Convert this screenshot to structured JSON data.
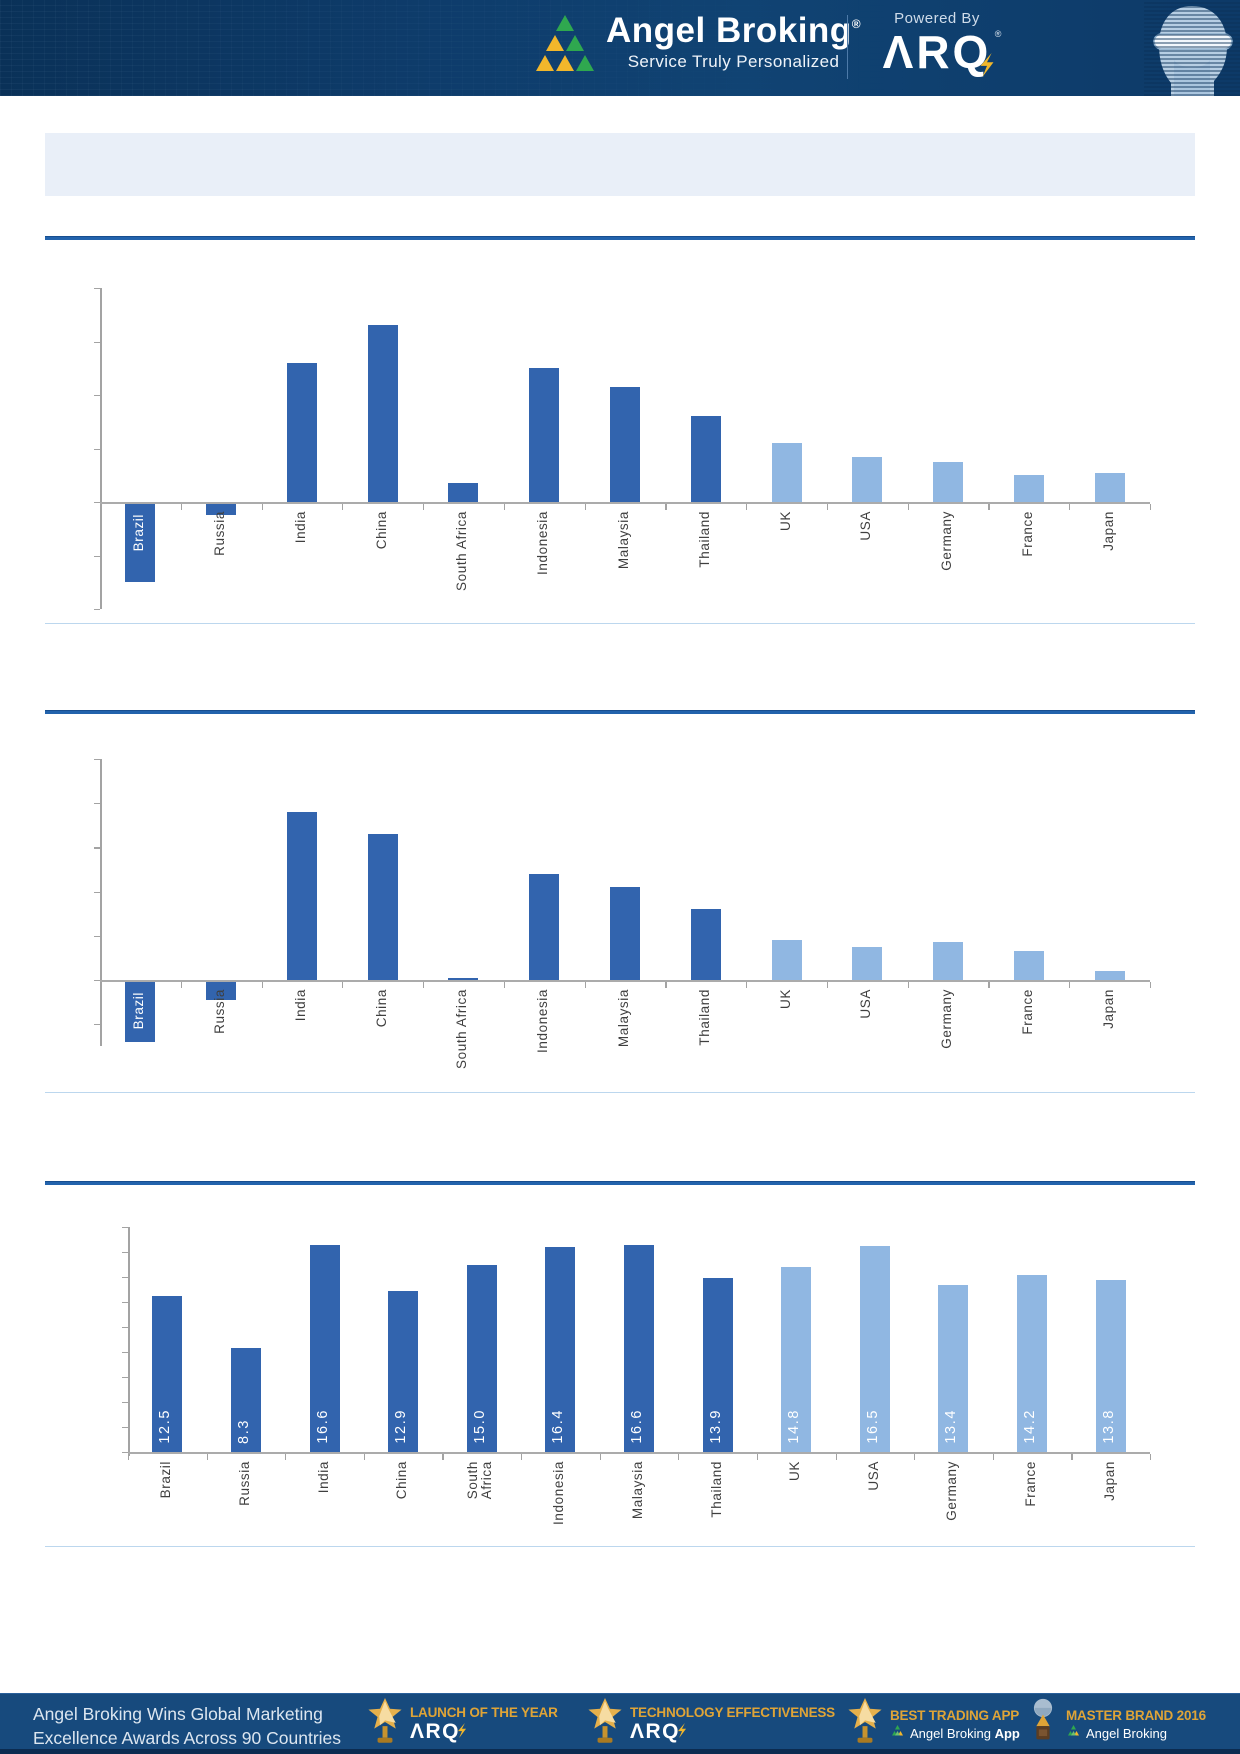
{
  "header": {
    "brand_name": "Angel Broking",
    "brand_reg": "®",
    "tagline": "Service Truly Personalized",
    "powered_by_label": "Powered By",
    "arq_brand": "ARQ",
    "arq_reg": "®"
  },
  "title_bar": {
    "text": ""
  },
  "colors": {
    "bar_dark": "#3264AE",
    "bar_light": "#90B7E2",
    "divider_blue": "#2263AC",
    "separator_light": "#BCD7EE",
    "axis_gray": "#A3A3A3",
    "header_bg": "#0E3C6B",
    "footer_bg": "#174A7D",
    "award_gold": "#DFA437",
    "logo_green": "#2FA84F",
    "logo_yellow": "#F2B72B",
    "title_bar_bg": "#E9EFF8"
  },
  "chart_data": [
    {
      "type": "bar",
      "title": "",
      "xlabel": "",
      "ylabel": "",
      "categories": [
        "Brazil",
        "Russia",
        "India",
        "China",
        "South Africa",
        "Indonesia",
        "Malaysia",
        "Thailand",
        "UK",
        "USA",
        "Germany",
        "France",
        "Japan"
      ],
      "values": [
        -1.45,
        -0.2,
        2.6,
        3.3,
        0.35,
        2.5,
        2.15,
        1.6,
        1.1,
        0.85,
        0.75,
        0.5,
        0.55
      ],
      "ylim": [
        -2,
        4
      ],
      "tick_step": 1,
      "y_tick_labels_visible": false,
      "gridlines": false,
      "legend": "none",
      "dark_count": 8,
      "labels_inside_bar": [
        "Brazil"
      ]
    },
    {
      "type": "bar",
      "title": "",
      "xlabel": "",
      "ylabel": "",
      "categories": [
        "Brazil",
        "Russia",
        "India",
        "China",
        "South Africa",
        "Indonesia",
        "Malaysia",
        "Thailand",
        "UK",
        "USA",
        "Germany",
        "France",
        "Japan"
      ],
      "values": [
        -1.35,
        -0.4,
        3.8,
        3.3,
        0.05,
        2.4,
        2.1,
        1.6,
        0.9,
        0.75,
        0.85,
        0.65,
        0.2
      ],
      "ylim": [
        -1.5,
        5
      ],
      "tick_step": 1,
      "y_tick_labels_visible": false,
      "gridlines": false,
      "legend": "none",
      "dark_count": 8,
      "labels_inside_bar": [
        "Brazil"
      ]
    },
    {
      "type": "bar",
      "title": "",
      "xlabel": "",
      "ylabel": "",
      "categories": [
        "Brazil",
        "Russia",
        "India",
        "China",
        "South Africa",
        "Indonesia",
        "Malaysia",
        "Thailand",
        "UK",
        "USA",
        "Germany",
        "France",
        "Japan"
      ],
      "values": [
        12.5,
        8.3,
        16.6,
        12.9,
        15.0,
        16.4,
        16.6,
        13.9,
        14.8,
        16.5,
        13.4,
        14.2,
        13.8
      ],
      "value_labels": [
        "12.5",
        "8.3",
        "16.6",
        "12.9",
        "15.0",
        "16.4",
        "16.6",
        "13.9",
        "14.8",
        "16.5",
        "13.4",
        "14.2",
        "13.8"
      ],
      "ylim": [
        0,
        18
      ],
      "tick_step": 2,
      "y_tick_labels_visible": false,
      "gridlines": false,
      "legend": "none",
      "dark_count": 8,
      "wrap_labels": true
    }
  ],
  "footer": {
    "headline_line1": "Angel Broking Wins Global Marketing",
    "headline_line2": "Excellence Awards Across 90 Countries",
    "awards": [
      {
        "icon": "star-trophy-icon",
        "title": "LAUNCH OF THE YEAR",
        "arq_logo": "ARQ"
      },
      {
        "icon": "star-trophy-icon",
        "title": "TECHNOLOGY EFFECTIVENESS",
        "arq_logo": "ARQ"
      },
      {
        "icon": "star-trophy-icon",
        "title": "BEST TRADING APP",
        "brand_line": {
          "text": "Angel Broking",
          "bold": "App"
        }
      },
      {
        "icon": "globe-trophy-icon",
        "title": "MASTER BRAND 2016",
        "brand_line": {
          "text": "Angel Broking",
          "bold": ""
        }
      }
    ]
  }
}
